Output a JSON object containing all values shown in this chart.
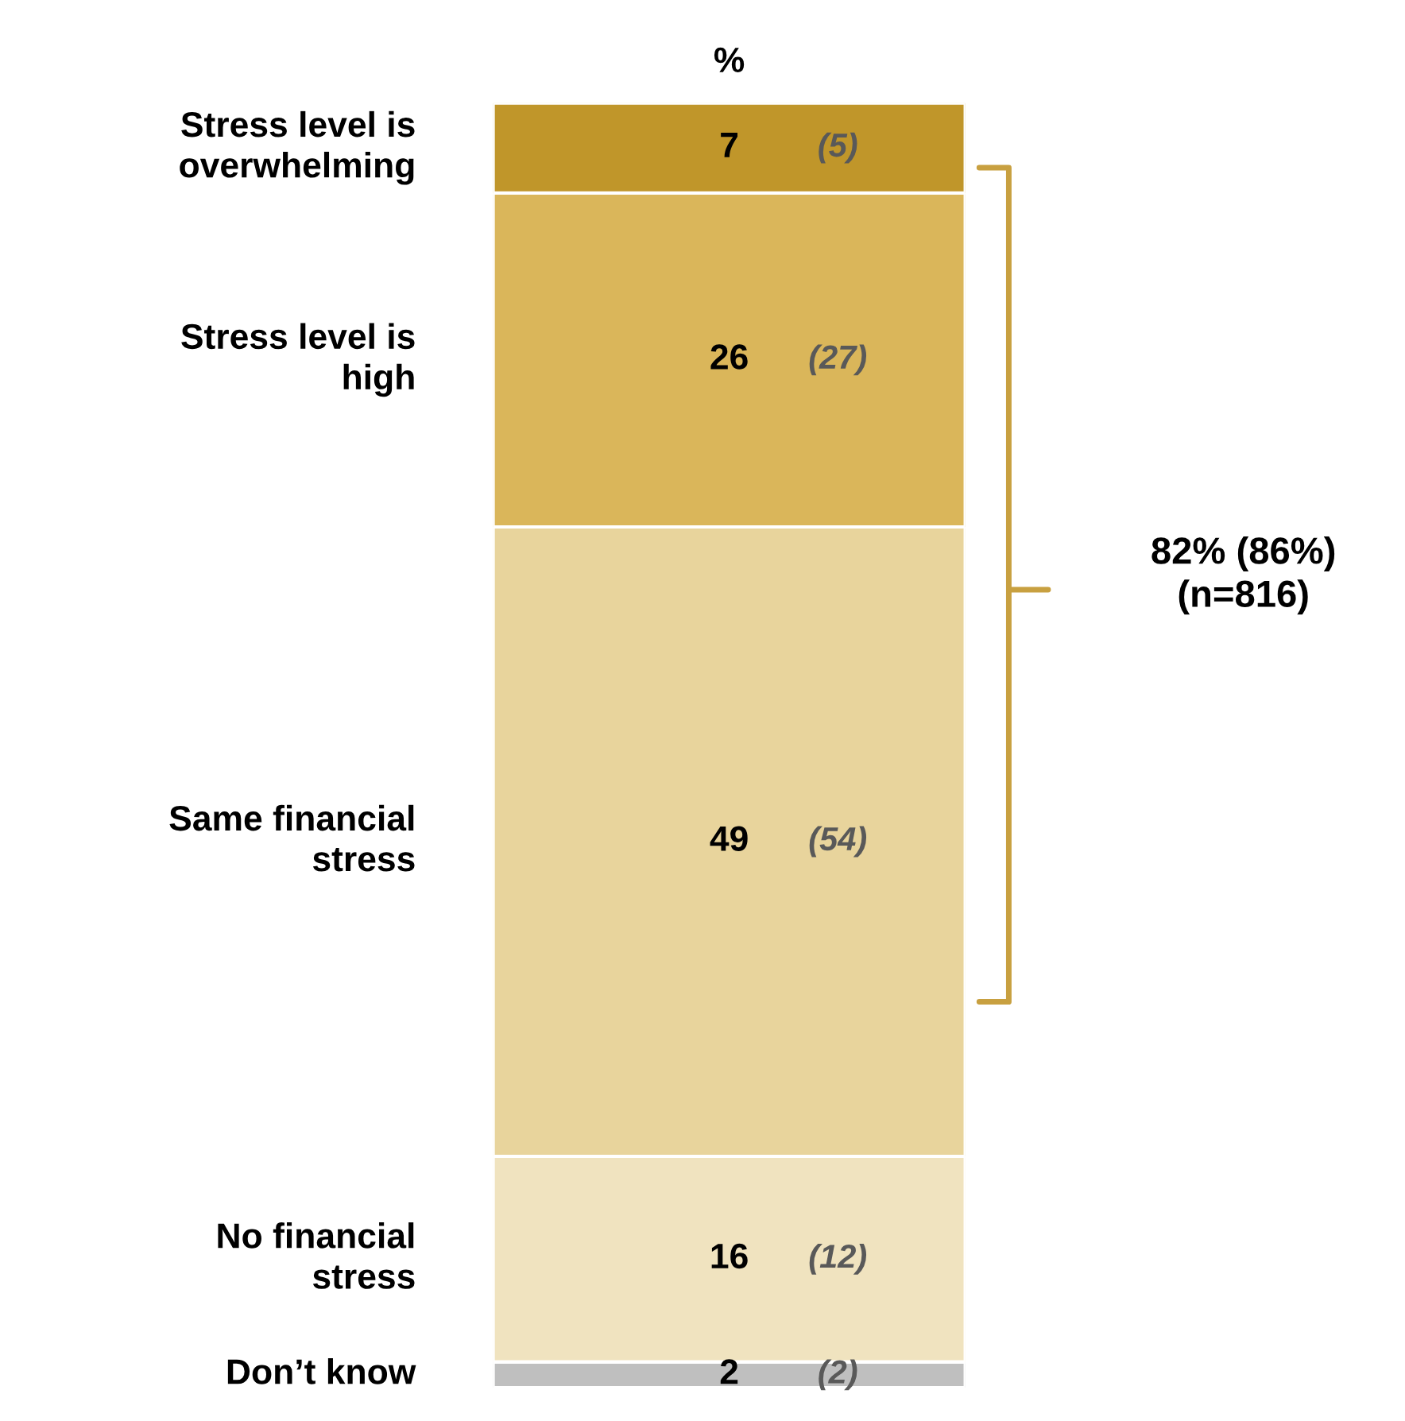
{
  "chart_data": {
    "type": "bar",
    "stacked": true,
    "title": "%",
    "categories": [
      null
    ],
    "ylim": [
      0,
      100
    ],
    "data_labels": true,
    "series": [
      {
        "name": "Don’t know",
        "color": "#bfbfbf",
        "values": [
          2
        ]
      },
      {
        "name": "No financial\nstress",
        "color": "#f0e3bf",
        "values": [
          16
        ]
      },
      {
        "name": "Same financial\nstress",
        "color": "#e8d49c",
        "values": [
          49
        ]
      },
      {
        "name": "Stress level is\nhigh",
        "color": "#dab65a",
        "values": [
          26
        ]
      },
      {
        "name": "Stress level is\noverwhelming",
        "color": "#c0962a",
        "values": [
          7
        ]
      }
    ],
    "annotations": [
      "(2)",
      "(12)",
      "(54)",
      "(27)",
      "(5)",
      "82% (86%)\n(n=816)"
    ]
  }
}
